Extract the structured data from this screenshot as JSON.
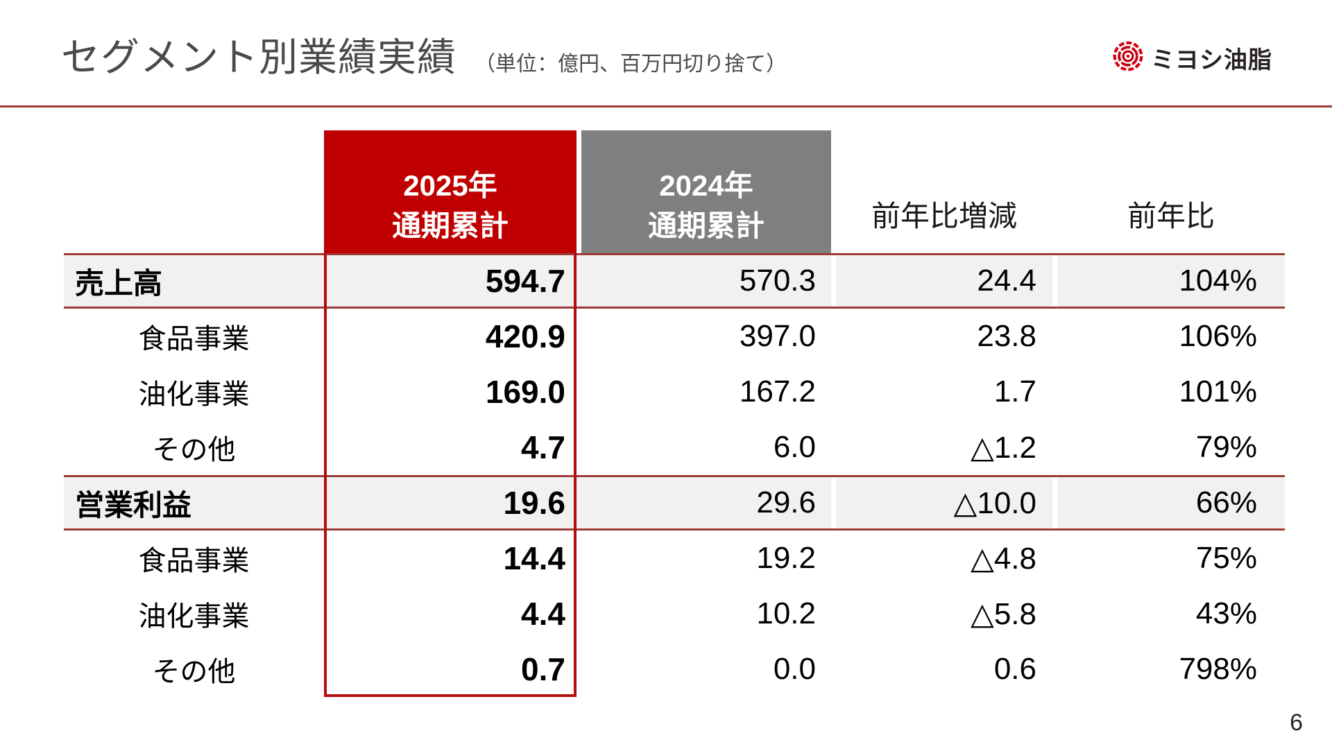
{
  "slide": {
    "title": "セグメント別業績実績",
    "unit_note": "（単位：億円、百万円切り捨て）",
    "page_number": "6",
    "logo": {
      "text": "ミヨシ油脂"
    }
  },
  "colors": {
    "accent_red": "#c00000",
    "header_gray": "#7f7f7f",
    "row_highlight_bg": "#f2f1f1",
    "rule_maroon": "#9a3b38",
    "focus_box_red": "#b50d0d",
    "logo_red": "#d7000f",
    "title_text": "#4a4a48"
  },
  "table": {
    "headers": {
      "col_2025": {
        "line1": "2025年",
        "line2": "通期累計"
      },
      "col_2024": {
        "line1": "2024年",
        "line2": "通期累計"
      },
      "col_diff": "前年比増減",
      "col_ratio": "前年比"
    },
    "rows": [
      {
        "label": "売上高",
        "emphasis": true,
        "v2025": "594.7",
        "v2024": "570.3",
        "diff": "24.4",
        "ratio": "104%"
      },
      {
        "label": "食品事業",
        "emphasis": false,
        "v2025": "420.9",
        "v2024": "397.0",
        "diff": "23.8",
        "ratio": "106%"
      },
      {
        "label": "油化事業",
        "emphasis": false,
        "v2025": "169.0",
        "v2024": "167.2",
        "diff": "1.7",
        "ratio": "101%"
      },
      {
        "label": "その他",
        "emphasis": false,
        "v2025": "4.7",
        "v2024": "6.0",
        "diff": "△1.2",
        "ratio": "79%"
      },
      {
        "label": "営業利益",
        "emphasis": true,
        "v2025": "19.6",
        "v2024": "29.6",
        "diff": "△10.0",
        "ratio": "66%"
      },
      {
        "label": "食品事業",
        "emphasis": false,
        "v2025": "14.4",
        "v2024": "19.2",
        "diff": "△4.8",
        "ratio": "75%"
      },
      {
        "label": "油化事業",
        "emphasis": false,
        "v2025": "4.4",
        "v2024": "10.2",
        "diff": "△5.8",
        "ratio": "43%"
      },
      {
        "label": "その他",
        "emphasis": false,
        "v2025": "0.7",
        "v2024": "0.0",
        "diff": "0.6",
        "ratio": "798%"
      }
    ]
  }
}
